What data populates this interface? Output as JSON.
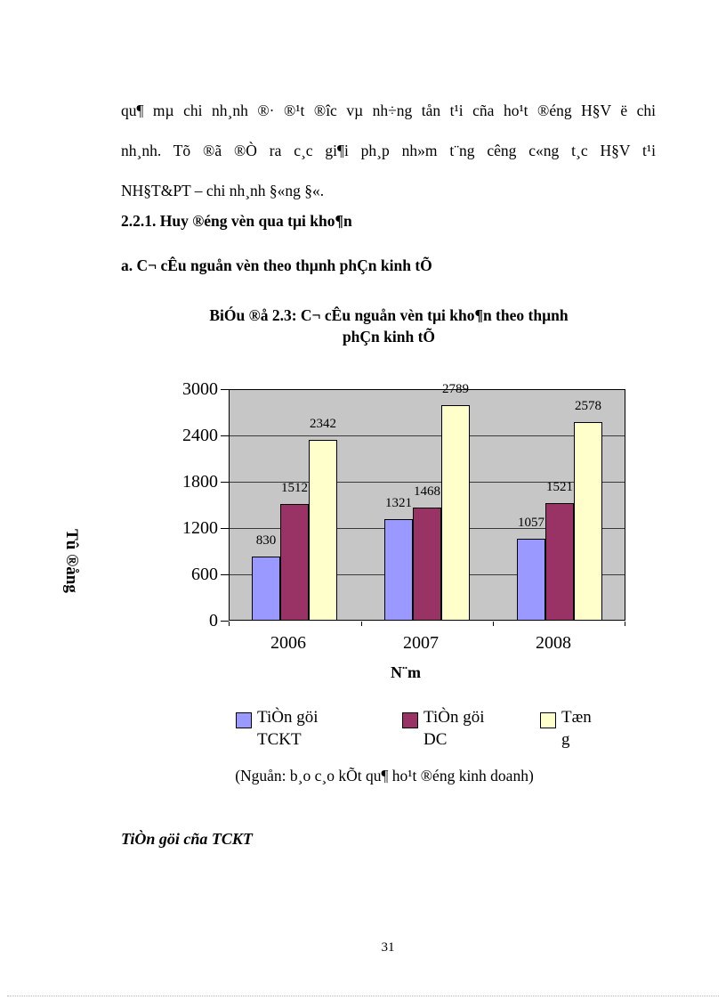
{
  "document": {
    "paragraph_lines": [
      "qu¶ mµ chi nh¸nh ®· ®¹t ®îc vµ nh÷ng tån t¹i cña ho¹t ®éng H§V ë chi",
      "nh¸nh. Tõ ®ã ®Ò ra c¸c gi¶i ph¸p nh»m t¨ng cêng c«ng t¸c H§V t¹i",
      "NH§T&PT – chi nh¸nh §«ng §«."
    ],
    "heading_numbered": "2.2.1. Huy ®éng vèn qua tµi kho¶n",
    "heading_lettered": "a. C¬ cÊu nguån vèn theo thµnh phÇn kinh tÕ",
    "closing_heading": "TiÒn göi cña TCKT",
    "page_number": "31"
  },
  "chart": {
    "title_line1": "BiÓu ®å 2.3: C¬ cÊu nguån vèn tµi kho¶n theo thµnh",
    "title_line2": "phÇn kinh tÕ",
    "y_axis_title": "Tû ®ång",
    "x_axis_title": "N¨m",
    "source_note": "(Nguån: b¸o c¸o kÕt qu¶ ho¹t ®éng kinh doanh)",
    "legend_items": [
      {
        "lines": [
          "TiÒn göi",
          "TCKT"
        ],
        "color": "#9999ff"
      },
      {
        "lines": [
          "TiÒn göi",
          "DC"
        ],
        "color": "#993366"
      },
      {
        "lines": [
          "Tæn",
          "g"
        ],
        "color": "#ffffcc"
      }
    ]
  },
  "chart_data": {
    "type": "bar",
    "categories": [
      "2006",
      "2007",
      "2008"
    ],
    "series": [
      {
        "name": "TiÒn göi TCKT",
        "color": "#9999ff",
        "values": [
          830,
          1321,
          1057
        ]
      },
      {
        "name": "TiÒn göi DC",
        "color": "#993366",
        "values": [
          1512,
          1468,
          1521
        ]
      },
      {
        "name": "Tæng",
        "color": "#ffffcc",
        "values": [
          2342,
          2789,
          2578
        ]
      }
    ],
    "title": "BiÓu ®å 2.3: C¬ cÊu nguån vèn tµi kho¶n theo thµnh phÇn kinh tÕ",
    "xlabel": "N¨m",
    "ylabel": "Tû ®ång",
    "ylim": [
      0,
      3000
    ],
    "yticks": [
      0,
      600,
      1200,
      1800,
      2400,
      3000
    ],
    "grid": true,
    "legend_position": "bottom",
    "plot_background": "#c6c6c6",
    "bar_value_labels": true
  }
}
